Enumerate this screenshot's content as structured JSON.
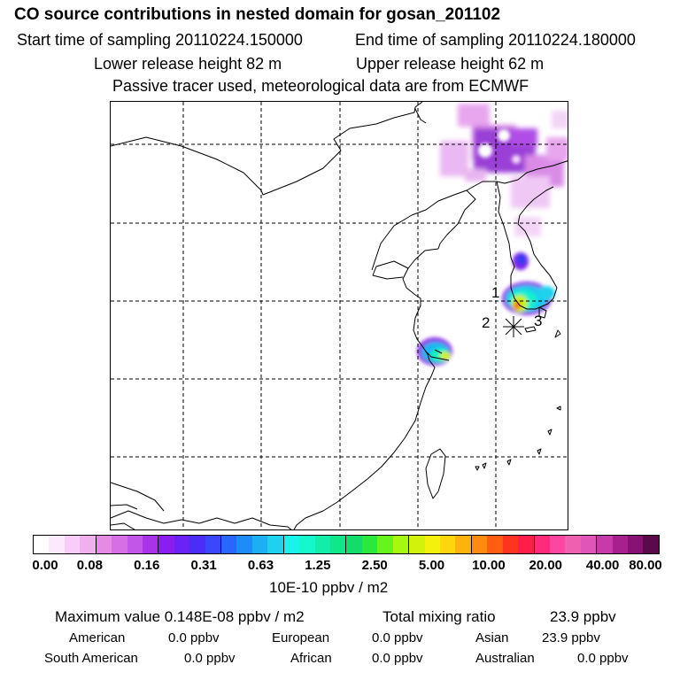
{
  "header": {
    "title": "CO  source contributions in nested domain for gosan_201102",
    "start_label": "Start time of sampling 20110224.150000",
    "end_label": "End time of sampling 20110224.180000",
    "lower_label": "Lower release height   82 m",
    "upper_label": "Upper release height   62 m",
    "note": "Passive tracer used, meteorological data are from ECMWF"
  },
  "map": {
    "markers": {
      "m1": "1",
      "m2": "2",
      "m3": "3"
    }
  },
  "colorbar": {
    "colors": [
      "#ffffff",
      "#fde9fd",
      "#f9cdf9",
      "#f0b0f0",
      "#e48be4",
      "#d66ee6",
      "#c256e8",
      "#a933ea",
      "#8a1ef0",
      "#6a22f6",
      "#4a2ef8",
      "#3848fa",
      "#2a66fa",
      "#1e8cf6",
      "#1cb0f2",
      "#1ed2ee",
      "#18f4ea",
      "#14f8cc",
      "#12eeaa",
      "#10e68a",
      "#14dc6a",
      "#2ae83c",
      "#66f41a",
      "#a6f80e",
      "#d2f20c",
      "#f4f20c",
      "#ffd60e",
      "#ffb20e",
      "#ff8a10",
      "#ff5e12",
      "#ff3420",
      "#ff1e4a",
      "#ff2a7a",
      "#fe46a0",
      "#f060b0",
      "#e055b8",
      "#c83aa8",
      "#a8208c",
      "#881274",
      "#5a0a4a"
    ],
    "ticks": [
      "0.00",
      "0.08",
      "0.16",
      "0.31",
      "0.63",
      "1.25",
      "2.50",
      "5.00",
      "10.00",
      "20.00",
      "40.00",
      "80.00"
    ],
    "units": "10E-10 ppbv / m2"
  },
  "summary": {
    "max_label": "Maximum value  0.148E-08 ppbv / m2",
    "total_label": "Total mixing ratio",
    "total_value": "23.9 ppbv",
    "regions": [
      {
        "name": "American",
        "value": "0.0 ppbv"
      },
      {
        "name": "European",
        "value": "0.0 ppbv"
      },
      {
        "name": "Asian",
        "value": "23.9 ppbv"
      },
      {
        "name": "South American",
        "value": "0.0 ppbv"
      },
      {
        "name": "African",
        "value": "0.0 ppbv"
      },
      {
        "name": "Australian",
        "value": "0.0 ppbv"
      }
    ]
  }
}
